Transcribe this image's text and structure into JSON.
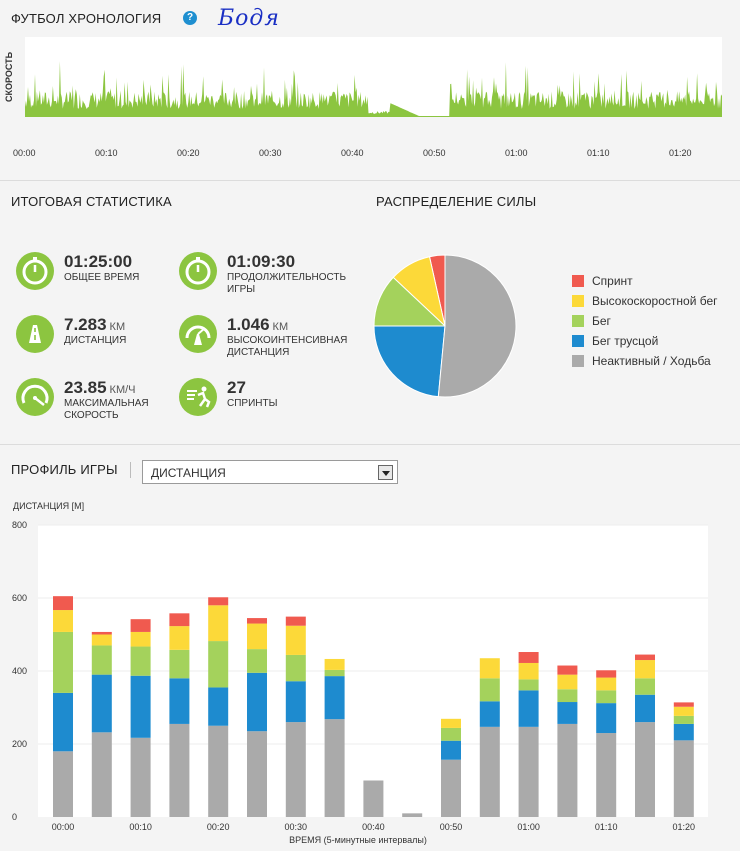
{
  "header": {
    "title": "ФУТБОЛ ХРОНОЛОГИЯ",
    "help": "?",
    "handwritten": "Бодя"
  },
  "timeline": {
    "ylabel": "СКОРОСТЬ",
    "ticks": [
      "00:00",
      "00:10",
      "00:20",
      "00:30",
      "00:40",
      "00:50",
      "01:00",
      "01:10",
      "01:20"
    ],
    "color": "#8cc540"
  },
  "summary": {
    "title": "ИТОГОВАЯ СТАТИСТИКА",
    "stats": [
      {
        "value": "01:25:00",
        "unit": "",
        "label": "ОБЩЕЕ ВРЕМЯ",
        "icon": "stopwatch-icon"
      },
      {
        "value": "01:09:30",
        "unit": "",
        "label": "ПРОДОЛЖИТЕЛЬНОСТЬ ИГРЫ",
        "icon": "stopwatch-icon"
      },
      {
        "value": "7.283",
        "unit": "КМ",
        "label": "ДИСТАНЦИЯ",
        "icon": "road-icon"
      },
      {
        "value": "1.046",
        "unit": "КМ",
        "label": "ВЫСОКОИНТЕНСИВНАЯ ДИСТАНЦИЯ",
        "icon": "speedometer-road-icon"
      },
      {
        "value": "23.85",
        "unit": "КМ/Ч",
        "label": "МАКСИМАЛЬНАЯ СКОРОСТЬ",
        "icon": "speedometer-icon"
      },
      {
        "value": "27",
        "unit": "",
        "label": "СПРИНТЫ",
        "icon": "sprinter-icon"
      }
    ]
  },
  "distribution": {
    "title": "РАСПРЕДЕЛЕНИЕ СИЛЫ"
  },
  "profile": {
    "title": "ПРОФИЛЬ ИГРЫ",
    "dropdown_value": "ДИСТАНЦИЯ"
  },
  "colors": {
    "sprint": "#f05a4f",
    "hsr": "#fcd939",
    "run": "#a4d25c",
    "jog": "#1e8bcf",
    "walk": "#aaaaaa",
    "accent": "#8cc540"
  },
  "chart_data": [
    {
      "type": "pie",
      "title": "РАСПРЕДЕЛЕНИЕ СИЛЫ",
      "categories": [
        "Спринт",
        "Высокоскоростной бег",
        "Бег",
        "Бег трусцой",
        "Неактивный / Ходьба"
      ],
      "values": [
        3.5,
        9.5,
        12,
        23.5,
        51.5
      ],
      "legend_position": "right"
    },
    {
      "type": "bar",
      "stacked": true,
      "ylabel": "ДИСТАНЦИЯ [М]",
      "xlabel": "ВРЕМЯ (5-минутные интервалы)",
      "ylim": [
        0,
        800
      ],
      "yticks": [
        0,
        200,
        400,
        600,
        800
      ],
      "x_tick_labels": [
        "00:00",
        "00:10",
        "00:20",
        "00:30",
        "00:40",
        "00:50",
        "01:00",
        "01:10",
        "01:20"
      ],
      "categories": [
        "00:00",
        "00:05",
        "00:10",
        "00:15",
        "00:20",
        "00:25",
        "00:30",
        "00:35",
        "00:40",
        "00:45",
        "00:50",
        "00:55",
        "01:00",
        "01:05",
        "01:10",
        "01:15",
        "01:20"
      ],
      "series": [
        {
          "name": "Неактивный / Ходьба",
          "values": [
            180,
            232,
            217,
            255,
            250,
            235,
            260,
            268,
            100,
            10,
            157,
            247,
            247,
            255,
            230,
            260,
            210
          ]
        },
        {
          "name": "Бег трусцой",
          "values": [
            160,
            158,
            170,
            125,
            105,
            160,
            112,
            118,
            0,
            0,
            52,
            70,
            100,
            60,
            82,
            75,
            45
          ]
        },
        {
          "name": "Бег",
          "values": [
            167,
            80,
            80,
            78,
            127,
            65,
            72,
            17,
            0,
            0,
            35,
            63,
            30,
            35,
            35,
            45,
            22
          ]
        },
        {
          "name": "Высокоскоростной бег",
          "values": [
            60,
            30,
            40,
            65,
            98,
            70,
            80,
            30,
            0,
            0,
            25,
            55,
            45,
            40,
            35,
            50,
            25
          ]
        },
        {
          "name": "Спринт",
          "values": [
            38,
            7,
            35,
            35,
            22,
            15,
            25,
            0,
            0,
            0,
            0,
            0,
            30,
            25,
            20,
            15,
            12
          ]
        }
      ]
    }
  ]
}
